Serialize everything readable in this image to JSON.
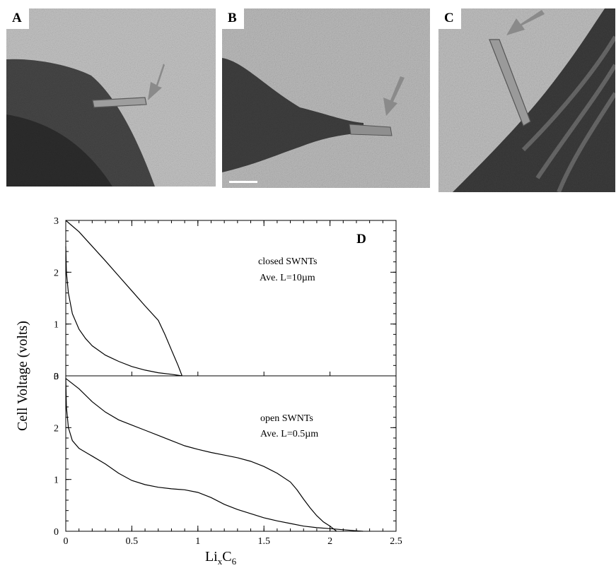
{
  "panels": [
    {
      "label": "A"
    },
    {
      "label": "B"
    },
    {
      "label": "C"
    }
  ],
  "colors": {
    "arrow": "#8a8a8a",
    "curve": "#000000",
    "micrograph_bg": "#b8b8b8",
    "micrograph_dark": "#3a3a3a"
  },
  "chart_data": {
    "type": "line",
    "panel_label": "D",
    "ylabel": "Cell Voltage (volts)",
    "xlabel_base": "Li",
    "xlabel_sub1": "x",
    "xlabel_mid": "C",
    "xlabel_sub2": "6",
    "xlim": [
      0,
      2.5
    ],
    "x_ticks": [
      0,
      0.5,
      1,
      1.5,
      2,
      2.5
    ],
    "x_tick_labels": [
      "0",
      "0.5",
      "1",
      "1.5",
      "2",
      "2.5"
    ],
    "subplots": [
      {
        "name": "closed",
        "ylim": [
          0,
          3
        ],
        "y_tick_labels": [
          "0",
          "1",
          "2",
          "3"
        ],
        "annotation_line1": "closed SWNTs",
        "annotation_line2": "Ave. L=10µm",
        "series": [
          {
            "x": [
              0.0,
              0.1,
              0.2,
              0.3,
              0.4,
              0.5,
              0.6,
              0.7,
              0.75,
              0.8,
              0.85,
              0.88
            ],
            "y": [
              3.0,
              2.78,
              2.5,
              2.22,
              1.93,
              1.64,
              1.35,
              1.07,
              0.8,
              0.5,
              0.2,
              0.0
            ]
          },
          {
            "x": [
              0.0,
              0.005,
              0.02,
              0.05,
              0.1,
              0.15,
              0.2,
              0.3,
              0.4,
              0.5,
              0.6,
              0.7,
              0.8,
              0.88
            ],
            "y": [
              2.5,
              2.0,
              1.6,
              1.2,
              0.9,
              0.72,
              0.58,
              0.4,
              0.28,
              0.18,
              0.11,
              0.06,
              0.03,
              0.0
            ]
          }
        ]
      },
      {
        "name": "open",
        "ylim": [
          0,
          3
        ],
        "y_tick_labels": [
          "0",
          "1",
          "2",
          "3"
        ],
        "annotation_line1": "open SWNTs",
        "annotation_line2": "Ave. L=0.5µm",
        "series": [
          {
            "x": [
              0.0,
              0.1,
              0.2,
              0.3,
              0.4,
              0.5,
              0.6,
              0.7,
              0.8,
              0.9,
              1.0,
              1.1,
              1.2,
              1.3,
              1.4,
              1.5,
              1.6,
              1.7,
              1.75,
              1.8,
              1.85,
              1.9,
              1.95,
              2.0,
              2.05
            ],
            "y": [
              2.95,
              2.75,
              2.5,
              2.3,
              2.15,
              2.05,
              1.95,
              1.85,
              1.75,
              1.65,
              1.58,
              1.52,
              1.47,
              1.42,
              1.35,
              1.25,
              1.12,
              0.95,
              0.8,
              0.62,
              0.45,
              0.3,
              0.18,
              0.1,
              0.0
            ]
          },
          {
            "x": [
              0.0,
              0.005,
              0.02,
              0.05,
              0.1,
              0.2,
              0.3,
              0.4,
              0.5,
              0.6,
              0.7,
              0.8,
              0.9,
              1.0,
              1.1,
              1.2,
              1.3,
              1.4,
              1.5,
              1.6,
              1.7,
              1.8,
              1.9,
              2.0,
              2.1,
              2.2,
              2.25
            ],
            "y": [
              2.95,
              2.4,
              2.0,
              1.75,
              1.6,
              1.45,
              1.3,
              1.12,
              0.98,
              0.9,
              0.85,
              0.82,
              0.8,
              0.75,
              0.65,
              0.52,
              0.42,
              0.34,
              0.26,
              0.2,
              0.15,
              0.1,
              0.07,
              0.05,
              0.03,
              0.01,
              0.0
            ]
          }
        ]
      }
    ]
  }
}
